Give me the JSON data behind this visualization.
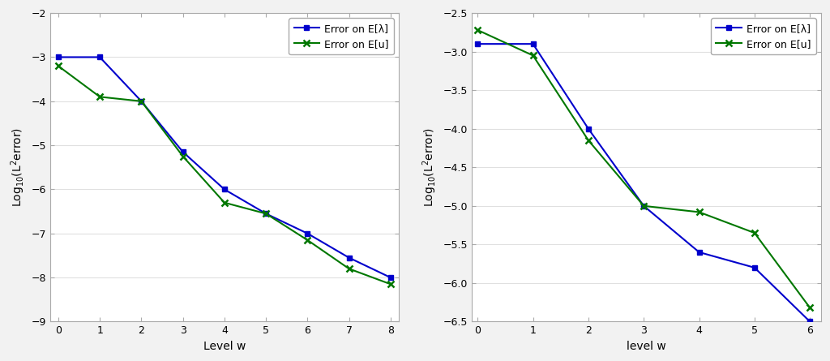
{
  "left": {
    "x": [
      0,
      1,
      2,
      3,
      4,
      5,
      6,
      7,
      8
    ],
    "lambda_y": [
      -3.0,
      -3.0,
      -4.0,
      -5.15,
      -6.0,
      -6.55,
      -7.0,
      -7.55,
      -8.0
    ],
    "u_y": [
      -3.2,
      -3.9,
      -4.0,
      -5.25,
      -6.3,
      -6.55,
      -7.15,
      -7.8,
      -8.15
    ],
    "xlabel": "Level w",
    "ylabel": "Log$_{10}$(L$^2$error)",
    "xlim": [
      -0.2,
      8.2
    ],
    "ylim": [
      -9,
      -2
    ],
    "yticks": [
      -9,
      -8,
      -7,
      -6,
      -5,
      -4,
      -3,
      -2
    ],
    "xticks": [
      0,
      1,
      2,
      3,
      4,
      5,
      6,
      7,
      8
    ]
  },
  "right": {
    "x": [
      0,
      1,
      2,
      3,
      4,
      5,
      6
    ],
    "lambda_y": [
      -2.9,
      -2.9,
      -4.0,
      -5.0,
      -5.6,
      -5.8,
      -6.5
    ],
    "u_y": [
      -2.72,
      -3.05,
      -4.15,
      -5.0,
      -5.08,
      -5.35,
      -6.32
    ],
    "xlabel": "level w",
    "ylabel": "Log$_{10}$(L$^2$error)",
    "xlim": [
      -0.1,
      6.2
    ],
    "ylim": [
      -6.5,
      -2.5
    ],
    "yticks": [
      -6.5,
      -6.0,
      -5.5,
      -5.0,
      -4.5,
      -4.0,
      -3.5,
      -3.0,
      -2.5
    ],
    "xticks": [
      0,
      1,
      2,
      3,
      4,
      5,
      6
    ]
  },
  "lambda_color": "#0000CC",
  "u_color": "#007700",
  "lambda_label": "Error on E[λ]",
  "u_label": "Error on E[u]",
  "bg_color": "#f2f2f2",
  "plot_bg": "#ffffff",
  "grid_color": "#e0e0e0",
  "spine_color": "#aaaaaa"
}
